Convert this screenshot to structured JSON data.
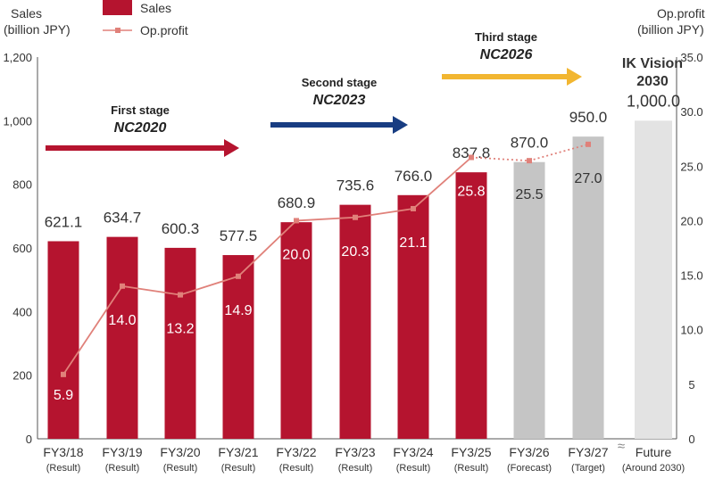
{
  "chart_data": {
    "type": "bar",
    "y_left_label": [
      "Sales",
      "(billion JPY)"
    ],
    "y_right_label": [
      "Op.profit",
      "(billion JPY)"
    ],
    "y_left_ticks": [
      "0",
      "200",
      "400",
      "600",
      "800",
      "1,000",
      "1,200"
    ],
    "y_right_ticks": [
      "0",
      "5",
      "10.0",
      "15.0",
      "20.0",
      "25.0",
      "30.0",
      "35.0"
    ],
    "ylim_left": [
      0,
      1200
    ],
    "ylim_right": [
      0,
      35
    ],
    "legend": {
      "sales": "Sales",
      "op_profit": "Op.profit"
    },
    "categories": [
      {
        "label": "FY3/18",
        "sub": "(Result)"
      },
      {
        "label": "FY3/19",
        "sub": "(Result)"
      },
      {
        "label": "FY3/20",
        "sub": "(Result)"
      },
      {
        "label": "FY3/21",
        "sub": "(Result)"
      },
      {
        "label": "FY3/22",
        "sub": "(Result)"
      },
      {
        "label": "FY3/23",
        "sub": "(Result)"
      },
      {
        "label": "FY3/24",
        "sub": "(Result)"
      },
      {
        "label": "FY3/25",
        "sub": "(Result)"
      },
      {
        "label": "FY3/26",
        "sub": "(Forecast)"
      },
      {
        "label": "FY3/27",
        "sub": "(Target)"
      },
      {
        "label": "Future",
        "sub": "(Around 2030)"
      }
    ],
    "sales": {
      "values": [
        621.1,
        634.7,
        600.3,
        577.5,
        680.9,
        735.6,
        766.0,
        837.8,
        870.0,
        950.0,
        1000.0
      ],
      "labels": [
        "621.1",
        "634.7",
        "600.3",
        "577.5",
        "680.9",
        "735.6",
        "766.0",
        "837.8",
        "870.0",
        "950.0",
        "1,000.0"
      ],
      "kind": [
        "result",
        "result",
        "result",
        "result",
        "result",
        "result",
        "result",
        "result",
        "forecast",
        "target",
        "vision"
      ]
    },
    "op_profit": {
      "values": [
        5.9,
        14.0,
        13.2,
        14.9,
        20.0,
        20.3,
        21.1,
        25.8,
        25.5,
        27.0
      ],
      "labels": [
        "5.9",
        "14.0",
        "13.2",
        "14.9",
        "20.0",
        "20.3",
        "21.1",
        "25.8",
        "25.5",
        "27.0"
      ]
    },
    "stages": [
      {
        "title": "First stage",
        "name": "NC2020",
        "color": "#b5142f"
      },
      {
        "title": "Second stage",
        "name": "NC2023",
        "color": "#183d82"
      },
      {
        "title": "Third stage",
        "name": "NC2026",
        "color": "#f2b631"
      }
    ],
    "vision": {
      "line1": "IK Vision",
      "line2": "2030"
    },
    "axis_break": "≈",
    "colors": {
      "sales_bar": "#b5142f",
      "forecast_bar": "#c5c5c5",
      "vision_bar": "#e3e3e3",
      "op_profit_line": "#e0817a",
      "axis": "#555555",
      "text": "#333333"
    }
  }
}
